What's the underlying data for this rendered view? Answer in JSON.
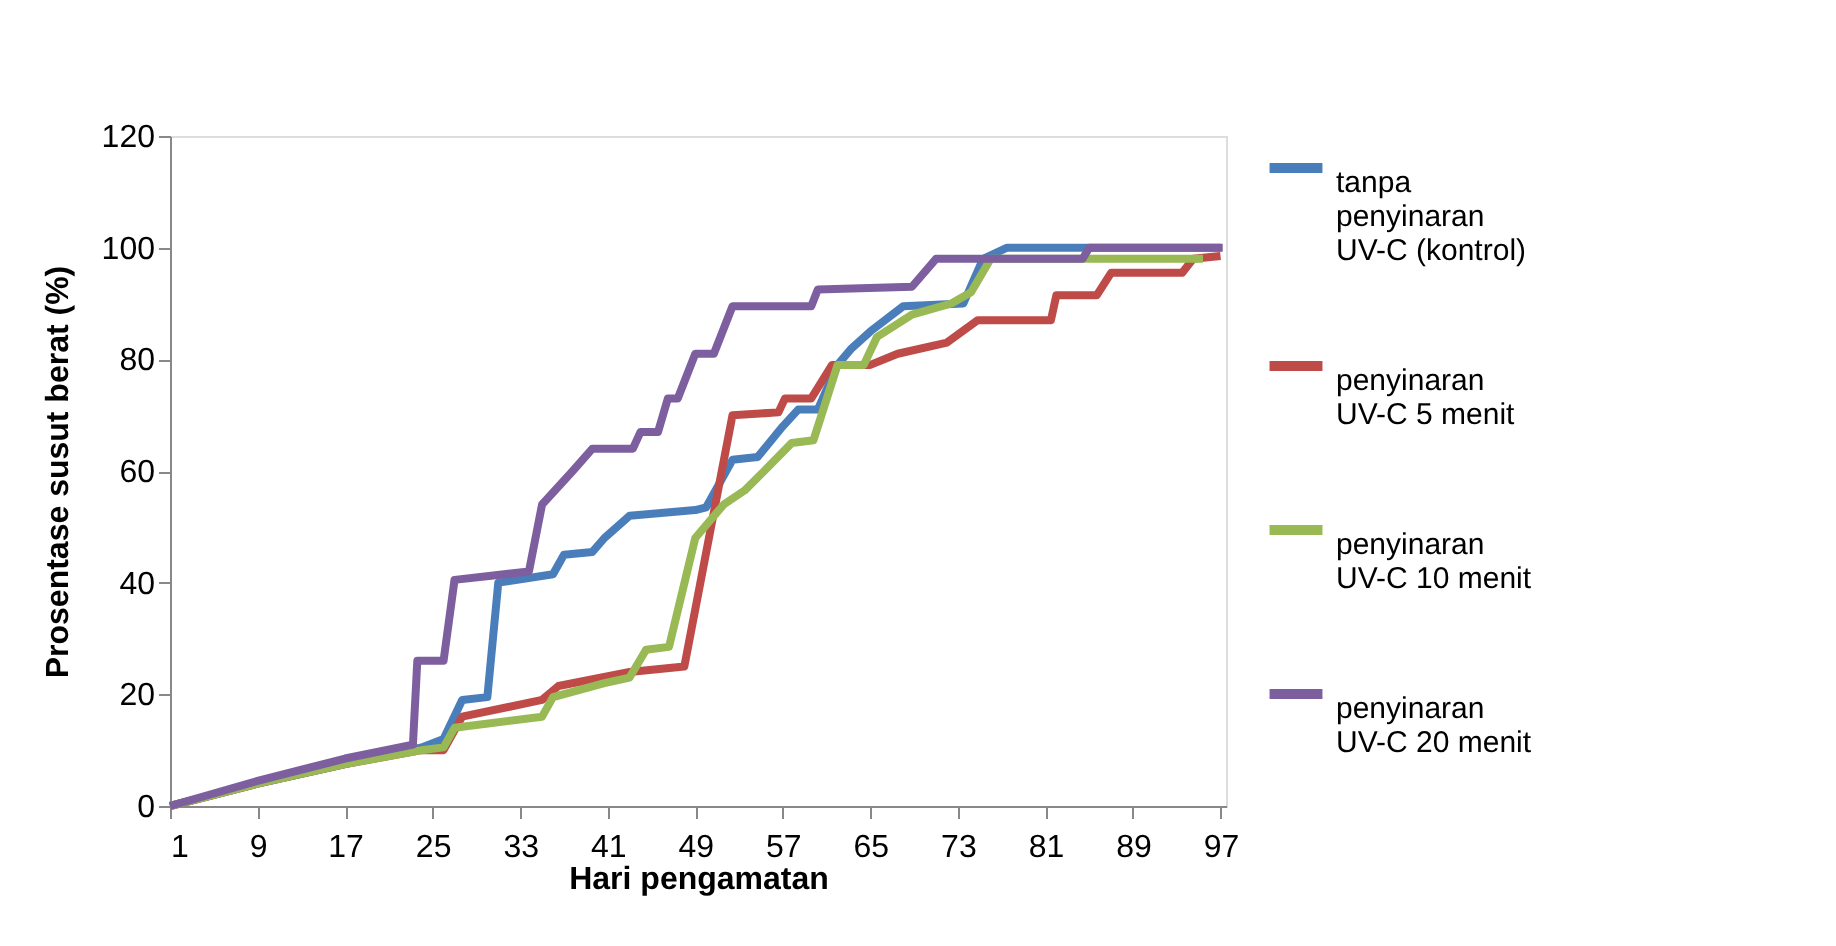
{
  "chart_data": {
    "type": "line",
    "xlabel": "Hari pengamatan",
    "ylabel": "Prosentase susut berat (%)",
    "xlim": [
      1,
      97.5
    ],
    "xticks": [
      1,
      9,
      17,
      25,
      33,
      41,
      49,
      57,
      65,
      73,
      81,
      89,
      97
    ],
    "ylim": [
      0,
      120
    ],
    "yticks": [
      0,
      20,
      40,
      60,
      80,
      100,
      120
    ],
    "grid": false,
    "legend": "right",
    "marker": "none",
    "line_style": "solid",
    "series": [
      {
        "name": "tanpa penyinaran UV-C (kontrol)",
        "color": "#4a7ebb",
        "x": [
          1,
          9,
          17,
          24,
          26,
          27.7,
          30,
          31,
          36,
          37,
          39.6,
          40.7,
          43,
          49,
          50,
          52.4,
          54.7,
          57,
          58.4,
          60.2,
          62,
          63.3,
          65,
          68,
          73.5,
          75.3,
          77.5,
          97
        ],
        "values": [
          0,
          4,
          7.5,
          10.5,
          12,
          19,
          19.5,
          40,
          41.5,
          45,
          45.5,
          48,
          52,
          53,
          53.5,
          62,
          62.5,
          68,
          71,
          71,
          79,
          82,
          85,
          89.5,
          90,
          98,
          100,
          100
        ]
      },
      {
        "name": "penyinaran UV-C 5 menit",
        "color": "#be4b48",
        "x": [
          1,
          9,
          17,
          24,
          26,
          27.7,
          35,
          36.5,
          43,
          48,
          52.4,
          56.6,
          57.2,
          59.6,
          61.5,
          65,
          67.5,
          72,
          74.8,
          81.5,
          82,
          85.7,
          87,
          93.5,
          94.5,
          97
        ],
        "values": [
          0,
          4,
          7.5,
          10,
          10,
          16,
          19,
          21.5,
          24,
          25,
          70,
          70.5,
          73,
          73,
          79,
          79,
          81,
          83,
          87,
          87,
          91.5,
          91.5,
          95.5,
          95.5,
          98,
          98.5
        ]
      },
      {
        "name": "penyinaran UV-C 10 menit",
        "color": "#98b954",
        "x": [
          1,
          9,
          17,
          24,
          26,
          27,
          35,
          36,
          40.7,
          43,
          44.5,
          46.6,
          49,
          51.6,
          53.5,
          55.3,
          57.8,
          59.8,
          62,
          64.4,
          65.6,
          68.8,
          72.4,
          74.2,
          76,
          95.4
        ],
        "values": [
          0,
          4,
          7.5,
          10,
          10.5,
          14,
          16,
          19.5,
          22,
          23,
          28,
          28.5,
          48,
          54,
          56.5,
          60,
          65,
          65.5,
          79,
          79,
          84,
          88,
          90,
          92,
          98,
          98
        ]
      },
      {
        "name": "penyinaran UV-C 20 menit",
        "color": "#7d5fa0",
        "x": [
          1,
          9,
          17,
          23.2,
          23.6,
          26,
          27,
          33.8,
          35,
          37.8,
          39.6,
          43.3,
          44,
          45.6,
          46.5,
          47.4,
          49,
          50.7,
          52.4,
          59.6,
          60.2,
          68.8,
          71,
          84.4,
          85,
          97.2
        ],
        "values": [
          0,
          4.5,
          8.5,
          11,
          26,
          26,
          40.5,
          42,
          54,
          60,
          64,
          64,
          67,
          67,
          73,
          73,
          81,
          81,
          89.5,
          89.5,
          92.5,
          93,
          98,
          98,
          100,
          100
        ]
      }
    ]
  }
}
